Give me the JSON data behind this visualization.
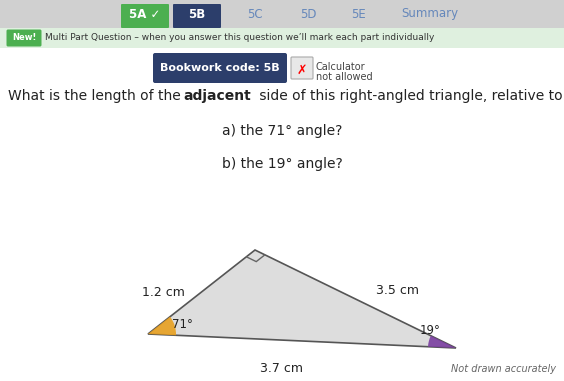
{
  "bg_color": "#d8d8d8",
  "content_bg": "#f5f5f5",
  "tab_items": [
    "5A",
    "5B",
    "5C",
    "5D",
    "5E",
    "Summary"
  ],
  "tab_active": "5B",
  "tab_active_color": "#2c3e6b",
  "tab_check_color": "#4caf50",
  "tab_inactive_color": "#d4d4d4",
  "tab_text_inactive": "#6688bb",
  "tab_summary_color": "#6688bb",
  "new_badge_color": "#4caf50",
  "banner_bg": "#dff0df",
  "banner_text": "Multi Part Question – when you answer this question we’ll mark each part individually",
  "bookwork_label": "Bookwork code: 5B",
  "bookwork_bg": "#2c3e6b",
  "bookwork_text_color": "#ffffff",
  "question_line1_pre": "What is the length of the ",
  "question_line1_bold": "adjacent",
  "question_line1_post": " side of this right-angled triangle, relative to",
  "part_a": "a) the 71° angle?",
  "part_b": "b) the 19° angle?",
  "not_drawn": "Not drawn accurately",
  "side_12_label": "1.2 cm",
  "side_23_label": "3.5 cm",
  "side_13_label": "3.7 cm",
  "angle_71_color": "#e8a020",
  "angle_19_color": "#7b3fa0",
  "tri_face_color": "#dddddd",
  "tri_edge_color": "#555555"
}
